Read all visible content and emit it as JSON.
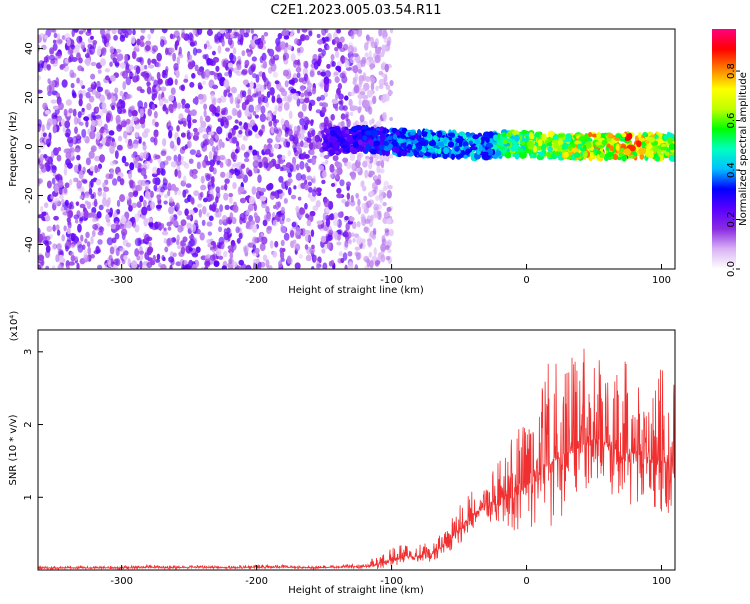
{
  "chart_data": [
    {
      "type": "heatmap",
      "title": "C2E1.2023.005.03.54.R11",
      "xlabel": "Height of straight line (km)",
      "ylabel": "Frequency (Hz)",
      "xlim": [
        -362,
        110
      ],
      "ylim": [
        -50,
        48
      ],
      "x_ticks": [
        -300,
        -200,
        -100,
        0,
        100
      ],
      "y_ticks": [
        40,
        20,
        0,
        -20,
        -40
      ],
      "colorbar": {
        "label": "Normalized spectral amplitude",
        "range": [
          0.0,
          0.97
        ],
        "ticks": [
          "0.0",
          "0.2",
          "0.4",
          "0.6",
          "0.8"
        ],
        "tick_values": [
          0.0,
          0.2,
          0.4,
          0.6,
          0.8
        ],
        "colors": [
          "#ffffff",
          "#d9b3f5",
          "#8a2be2",
          "#5a00ff",
          "#0000ff",
          "#00bfff",
          "#00ffc0",
          "#00ff00",
          "#c0ff00",
          "#ffff00",
          "#ff8000",
          "#ff0000",
          "#ff007f"
        ]
      },
      "features": [
        {
          "description": "scattered low-amplitude noise",
          "x_range": [
            -362,
            -130
          ],
          "y_range": [
            -50,
            48
          ],
          "amplitude": [
            0.05,
            0.25
          ]
        },
        {
          "description": "signal band",
          "x": [
            -150,
            -120,
            -100,
            -80,
            -60,
            -45,
            -30,
            -20,
            0,
            20,
            50,
            80,
            110
          ],
          "y": [
            2,
            3,
            2,
            1,
            1,
            0,
            0,
            1,
            1,
            0,
            0,
            0,
            0
          ],
          "amplitude": [
            0.3,
            0.35,
            0.4,
            0.45,
            0.5,
            0.5,
            0.45,
            0.6,
            0.7,
            0.75,
            0.85,
            0.9,
            0.75
          ]
        }
      ],
      "grid": false
    },
    {
      "type": "line",
      "xlabel": "Height of straight line (km)",
      "ylabel": "SNR (10 * v/v)",
      "y_multiplier": "(x10⁴)",
      "xlim": [
        -362,
        110
      ],
      "ylim": [
        0,
        3.3
      ],
      "x_ticks": [
        -300,
        -200,
        -100,
        0,
        100
      ],
      "y_ticks": [
        1,
        2,
        3
      ],
      "color": "#f03030",
      "x": [
        -362,
        -340,
        -320,
        -300,
        -280,
        -260,
        -240,
        -220,
        -200,
        -180,
        -160,
        -140,
        -120,
        -110,
        -100,
        -90,
        -80,
        -70,
        -60,
        -50,
        -40,
        -30,
        -20,
        -10,
        0,
        10,
        20,
        30,
        40,
        50,
        60,
        70,
        80,
        90,
        100,
        110
      ],
      "y": [
        0.03,
        0.03,
        0.03,
        0.03,
        0.04,
        0.03,
        0.04,
        0.03,
        0.04,
        0.04,
        0.03,
        0.04,
        0.05,
        0.08,
        0.15,
        0.18,
        0.2,
        0.22,
        0.35,
        0.55,
        0.75,
        0.9,
        1.0,
        1.05,
        1.15,
        1.35,
        1.5,
        1.6,
        1.7,
        1.8,
        1.75,
        1.6,
        1.6,
        1.55,
        1.5,
        1.45
      ],
      "peak_y": [
        0.06,
        0.06,
        0.05,
        0.06,
        0.07,
        0.06,
        0.07,
        0.06,
        0.08,
        0.07,
        0.06,
        0.06,
        0.1,
        0.2,
        0.32,
        0.35,
        0.35,
        0.4,
        0.55,
        0.9,
        1.1,
        1.35,
        1.6,
        1.9,
        2.3,
        2.6,
        3.05,
        2.85,
        3.15,
        3.0,
        2.75,
        2.95,
        2.8,
        2.7,
        2.95,
        2.6
      ],
      "grid": false
    }
  ]
}
